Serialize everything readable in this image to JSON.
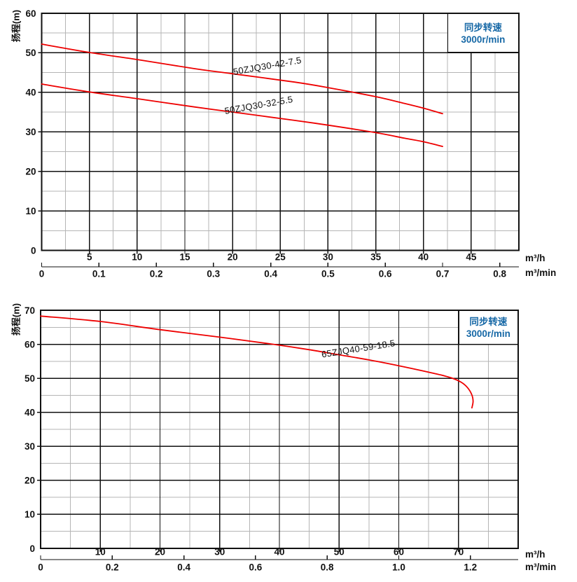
{
  "colors": {
    "curve": "#ee0000",
    "legend_blue": "#1668a6",
    "grid_major": "#111111",
    "grid_minor": "#b5b5b5",
    "background": "#ffffff"
  },
  "chart_data": [
    {
      "type": "line",
      "title": "",
      "ylabel": "扬程(m)",
      "legend": {
        "line1": "同步转速",
        "line2": "3000r/min"
      },
      "y_axis": {
        "min": 0,
        "max": 60,
        "major": 10,
        "minor": 5,
        "ticks": [
          "0",
          "10",
          "20",
          "30",
          "40",
          "50",
          "60"
        ],
        "tick_values": [
          0,
          10,
          20,
          30,
          40,
          50,
          60
        ]
      },
      "x_axis": {
        "unit": "m³/h",
        "min": 0,
        "max": 50,
        "major": 5,
        "minor": 2.5,
        "ticks": [
          "5",
          "10",
          "15",
          "20",
          "25",
          "30",
          "35",
          "40",
          "45"
        ],
        "tick_values": [
          5,
          10,
          15,
          20,
          25,
          30,
          35,
          40,
          45
        ]
      },
      "x_axis2": {
        "unit": "m³/min",
        "to_main_factor": 60,
        "ticks": [
          "0",
          "0.1",
          "0.2",
          "0.3",
          "0.4",
          "0.5",
          "0.6",
          "0.7",
          "0.8"
        ],
        "tick_values": [
          0,
          0.1,
          0.2,
          0.3,
          0.4,
          0.5,
          0.6,
          0.7,
          0.8
        ]
      },
      "series": [
        {
          "name": "50ZJQ30-42-7.5",
          "points": [
            [
              0,
              52.2
            ],
            [
              5,
              50.1
            ],
            [
              10,
              48.3
            ],
            [
              16,
              46.0
            ],
            [
              20,
              44.7
            ],
            [
              26.5,
              42.6
            ],
            [
              30,
              41.2
            ],
            [
              35,
              38.9
            ],
            [
              38,
              37.2
            ],
            [
              40,
              36.0
            ],
            [
              42,
              34.6
            ]
          ],
          "label_anchor": [
            23.7,
            45.9
          ],
          "label_angle": -10
        },
        {
          "name": "50ZJQ30-32-5.5",
          "points": [
            [
              0,
              42.1
            ],
            [
              5,
              40.1
            ],
            [
              10,
              38.4
            ],
            [
              16,
              36.3
            ],
            [
              20,
              35.0
            ],
            [
              26.5,
              32.9
            ],
            [
              30,
              31.7
            ],
            [
              35,
              29.8
            ],
            [
              38,
              28.4
            ],
            [
              40,
              27.5
            ],
            [
              42,
              26.3
            ]
          ],
          "label_anchor": [
            22.8,
            36.0
          ],
          "label_angle": -10
        }
      ]
    },
    {
      "type": "line",
      "title": "",
      "ylabel": "扬程(m)",
      "legend": {
        "line1": "同步转速",
        "line2": "3000r/min"
      },
      "y_axis": {
        "min": 0,
        "max": 70,
        "major": 10,
        "minor": 5,
        "ticks": [
          "0",
          "10",
          "20",
          "30",
          "40",
          "50",
          "60",
          "70"
        ],
        "tick_values": [
          0,
          10,
          20,
          30,
          40,
          50,
          60,
          70
        ]
      },
      "x_axis": {
        "unit": "m³/h",
        "min": 0,
        "max": 80,
        "major": 10,
        "minor": 5,
        "ticks": [
          "10",
          "20",
          "30",
          "40",
          "50",
          "60",
          "70"
        ],
        "tick_values": [
          10,
          20,
          30,
          40,
          50,
          60,
          70
        ]
      },
      "x_axis2": {
        "unit": "m³/min",
        "to_main_factor": 60,
        "ticks": [
          "0",
          "0.2",
          "0.4",
          "0.6",
          "0.8",
          "1.0",
          "1.2"
        ],
        "tick_values": [
          0,
          0.2,
          0.4,
          0.6,
          0.8,
          1.0,
          1.2
        ]
      },
      "series": [
        {
          "name": "65ZJQ40-59-18.5",
          "points": [
            [
              0,
              68.3
            ],
            [
              10,
              66.7
            ],
            [
              20,
              64.3
            ],
            [
              30,
              62.1
            ],
            [
              39,
              60.0
            ],
            [
              45,
              58.4
            ],
            [
              50,
              56.9
            ],
            [
              55,
              55.4
            ],
            [
              60,
              53.7
            ],
            [
              64,
              52.2
            ],
            [
              67,
              51.0
            ],
            [
              69,
              50.0
            ],
            [
              70.5,
              48.8
            ],
            [
              71.5,
              47.3
            ],
            [
              72.2,
              45.3
            ],
            [
              72.45,
              43.3
            ],
            [
              72.25,
              41.3
            ]
          ],
          "label_anchor": [
            53.3,
            57.8
          ],
          "label_angle": -9
        }
      ]
    }
  ]
}
